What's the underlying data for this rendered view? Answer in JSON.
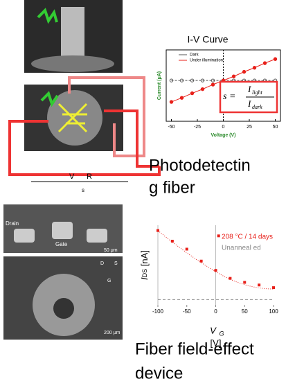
{
  "chart_data": [
    {
      "type": "line",
      "title": "I-V Curve",
      "xlabel": "Voltage (V)",
      "ylabel": "Current (μA)",
      "x": [
        -50,
        -40,
        -30,
        -20,
        -10,
        0,
        10,
        20,
        30,
        40,
        50
      ],
      "xlim": [
        -55,
        55
      ],
      "xticks": [
        -50,
        -25,
        0,
        25,
        50
      ],
      "ylim": [
        -0.8,
        0.6
      ],
      "series": [
        {
          "name": "Dark",
          "color": "#555555",
          "values": [
            0,
            0,
            0,
            0,
            0,
            0,
            0,
            0,
            0,
            0,
            0
          ]
        },
        {
          "name": "Under illumination",
          "color": "#e8201a",
          "values": [
            -0.42,
            -0.34,
            -0.25,
            -0.17,
            -0.08,
            0,
            0.08,
            0.17,
            0.25,
            0.34,
            0.42
          ]
        }
      ],
      "legend": "upper left",
      "annotation": {
        "lhs": "s =",
        "num": "I",
        "num_sub": "light",
        "den": "I",
        "den_sub": "dark"
      }
    },
    {
      "type": "scatter",
      "xlabel": "V",
      "xlabel_sub": "G",
      "xunit": "[V]",
      "ylabel": "I",
      "ylabel_sub": "DS",
      "yunit": " [nA]",
      "x": [
        -100,
        -75,
        -50,
        -25,
        0,
        5,
        25,
        50,
        75,
        100
      ],
      "xlim": [
        -100,
        100
      ],
      "xticks": [
        -100,
        -50,
        0,
        50,
        100
      ],
      "ylim": [
        0,
        600
      ],
      "series": [
        {
          "name": "208 °C / 14 days",
          "color": "#e8201a",
          "values": [
            560,
            480,
            420,
            330,
            260,
            520,
            200,
            170,
            150,
            130
          ]
        },
        {
          "name": "Unanneal ed",
          "color": "#888888",
          "values": [
            40,
            40,
            40,
            40,
            40,
            40,
            40,
            40,
            40,
            40
          ]
        }
      ]
    }
  ],
  "captions": [
    "Photodetectin",
    "g fiber",
    "Fiber field-effect",
    "device"
  ],
  "circuit": {
    "v": "V",
    "r": "R",
    "sub": "s"
  },
  "micrograph": {
    "drain": "Drain",
    "gate": "Gate",
    "scale1": "50 μm",
    "scale2": "200 μm",
    "d": "D",
    "s": "S",
    "g": "G"
  }
}
